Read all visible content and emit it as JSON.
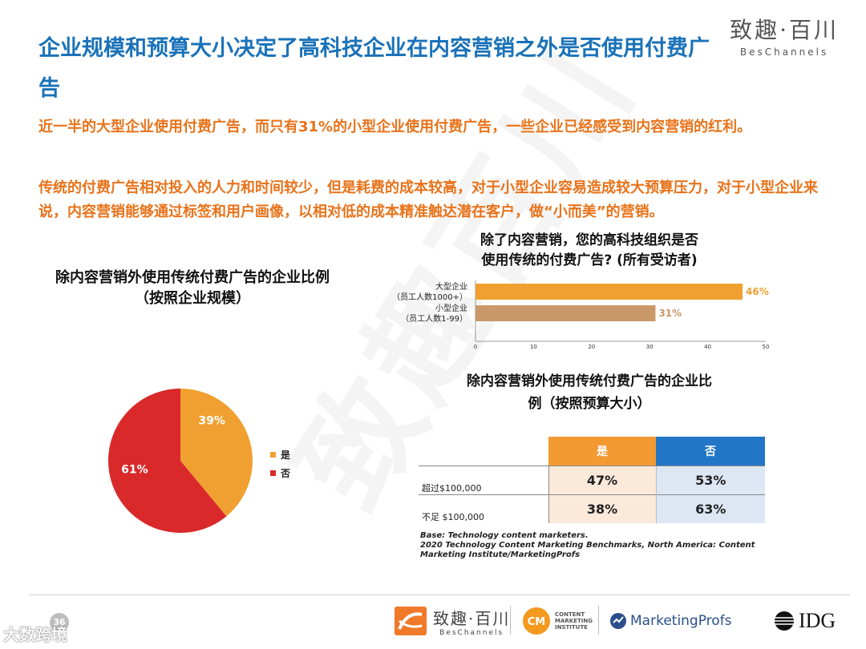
{
  "header": {
    "title": "企业规模和预算大小决定了高科技企业在内容营销之外是否使用付费广告",
    "logo_cn": "致趣·百川",
    "logo_en": "BesChannels"
  },
  "paragraphs": [
    "近一半的大型企业使用付费广告，而只有31%的小型企业使用付费广告，一些企业已经感受到内容营销的红利。",
    "传统的付费广告相对投入的人力和时间较少，但是耗费的成本较高，对于小型企业容易造成较大预算压力，对于小型企业来说，内容营销能够通过标签和用户画像，以相对低的成本精准触达潜在客户，做“小而美”的营销。"
  ],
  "chart_data": [
    {
      "type": "pie",
      "title": "除内容营销外使用传统付费广告的企业比例",
      "subtitle": "（按照企业规模）",
      "categories": [
        "是",
        "否"
      ],
      "values": [
        39,
        61
      ],
      "labels": [
        "39%",
        "61%"
      ],
      "colors": [
        "#f0a030",
        "#d9292a"
      ],
      "legend": "right"
    },
    {
      "type": "bar",
      "orientation": "horizontal",
      "title": "除了内容营销，您的高科技组织是否",
      "subtitle": "使用传统的付费广告? (所有受访者)",
      "categories": [
        {
          "name": "大型企业",
          "sub": "（员工人数1000+）"
        },
        {
          "name": "小型企业",
          "sub": "（员工人数1-99）"
        }
      ],
      "values": [
        46,
        31
      ],
      "labels": [
        "46%",
        "31%"
      ],
      "colors": [
        "#f0a030",
        "#c9996a"
      ],
      "xlim": [
        0,
        50
      ],
      "xticks": [
        "0",
        "10",
        "20",
        "30",
        "40",
        "50"
      ]
    },
    {
      "type": "table",
      "title": "除内容营销外使用传统付费广告的企业比",
      "subtitle": "例（按照预算大小）",
      "columns": [
        "是",
        "否"
      ],
      "rows": [
        {
          "label": "超过$100,000",
          "values": [
            "47%",
            "53%"
          ]
        },
        {
          "label": "不足 $100,000",
          "values": [
            "38%",
            "63%"
          ]
        }
      ]
    }
  ],
  "source": {
    "line1": "Base: Technology content marketers.",
    "line2": "2020 Technology Content Marketing Benchmarks, North America: Content Marketing Institute/MarketingProfs"
  },
  "footer": {
    "page_number": "36",
    "watermark": "大数跨境",
    "logo1_cn": "致趣·百川",
    "logo1_en": "BesChannels",
    "logo2_lines": [
      "CONTENT",
      "MARKETING",
      "INSTITUTE"
    ],
    "logo2_mark": "CM",
    "logo3": "MarketingProfs",
    "logo4": "IDG"
  }
}
